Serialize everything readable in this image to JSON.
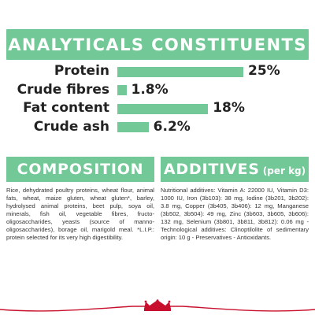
{
  "header": {
    "title": "ANALYTICALS CONSTITUENTS"
  },
  "chart_data": {
    "type": "bar",
    "orientation": "horizontal",
    "categories": [
      "Protein",
      "Crude fibres",
      "Fat content",
      "Crude ash"
    ],
    "values": [
      25,
      1.8,
      18,
      6.2
    ],
    "value_labels": [
      "25%",
      "1.8%",
      "18%",
      "6.2%"
    ],
    "unit": "%",
    "xlim": [
      0,
      25
    ],
    "grid": false,
    "color": "#72c896"
  },
  "composition": {
    "title": "COMPOSITION",
    "text": "Rice, dehydrated poultry proteins, wheat flour, animal fats, wheat, maize gluten, wheat gluten*, barley, hydrolysed animal proteins, beet pulp, soya oil, minerals, fish oil, vegetable fibres, fructo-oligosaccharides, yeasts (source of manno-oligosaccharides), borage oil, marigold meal. *L.I.P.: protein selected for its very high digestibility."
  },
  "additives": {
    "title": "ADDITIVES",
    "suffix": "(per kg)",
    "text": "Nutritional additives: Vitamin A: 22000 IU, Vitamin D3: 1000 IU, Iron (3b103): 38 mg, Iodine (3b201, 3b202): 3.8 mg, Copper (3b405, 3b406): 12 mg, Manganese (3b502, 3b504): 49 mg, Zinc (3b603, 3b605, 3b606): 132 mg, Selenium (3b801, 3b811, 3b812): 0.06 mg - Technological additives: Clinoptilolite of sedimentary origin: 10 g - Preservatives - Antioxidants."
  },
  "colors": {
    "accent": "#72c896",
    "logo_red": "#c8102e"
  }
}
